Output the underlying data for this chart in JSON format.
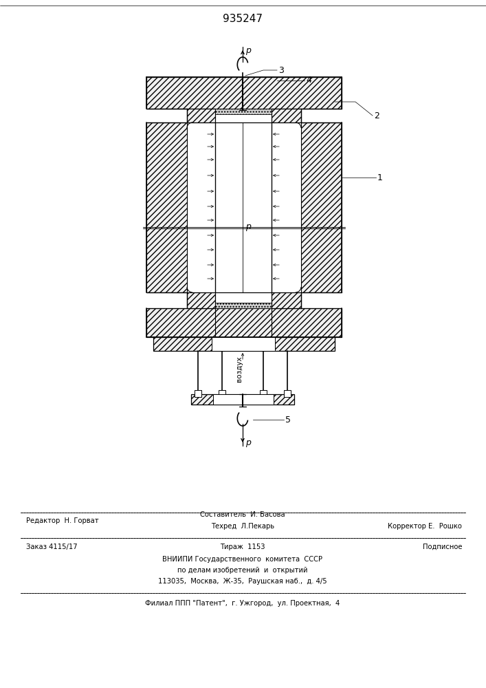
{
  "title": "935247",
  "title_fontsize": 11,
  "bg_color": "#ffffff",
  "line_color": "#000000",
  "label1": "1",
  "label2": "2",
  "label3": "3",
  "label4": "4",
  "label5": "5",
  "label_p": "p",
  "footer_line1_left": "Редактор  Н. Горват",
  "footer_line1_center": "Составитель  И. Басова",
  "footer_line2_center": "Техред  Л.Пекарь",
  "footer_line2_right": "Корректор Е.  Рошко",
  "footer_line3_left": "Заказ 4115/17",
  "footer_line3_center": "Тираж  1153",
  "footer_line3_right": "Подписное",
  "footer_line4": "ВНИИПИ Государственного  комитета  СССР",
  "footer_line5": "по делам изобретений  и  открытий",
  "footer_line6": "113035,  Москва,  Ж-35,  Раушская наб.,  д. 4/5",
  "footer_line7": "Филиал ППП \"Патент\",  г. Ужгород,  ул. Проектная,  4"
}
